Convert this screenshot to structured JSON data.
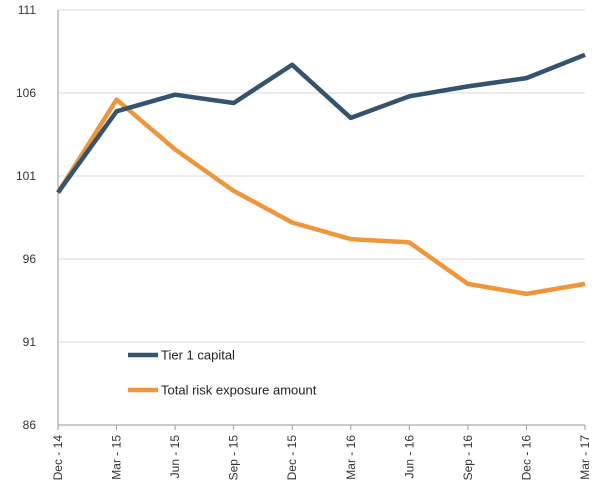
{
  "chart_data": {
    "type": "line",
    "categories": [
      "Dec - 14",
      "Mar - 15",
      "Jun - 15",
      "Sep - 15",
      "Dec - 15",
      "Mar - 16",
      "Jun - 16",
      "Sep - 16",
      "Dec - 16",
      "Mar - 17"
    ],
    "series": [
      {
        "name": "Tier 1 capital",
        "color": "#34536f",
        "values": [
          100.0,
          104.9,
          105.9,
          105.4,
          107.7,
          104.5,
          105.8,
          106.4,
          106.9,
          108.3
        ]
      },
      {
        "name": "Total risk exposure amount",
        "color": "#ef963b",
        "values": [
          100.0,
          105.6,
          102.6,
          100.1,
          98.2,
          97.2,
          97.0,
          94.5,
          93.9,
          94.5
        ]
      }
    ],
    "y_ticks": [
      "86",
      "91",
      "96",
      "101",
      "106",
      "111"
    ],
    "ylim": [
      86,
      111
    ],
    "grid": "horizontal",
    "legend_position": "lower-left inside plot",
    "title": "",
    "xlabel": "",
    "ylabel": ""
  }
}
